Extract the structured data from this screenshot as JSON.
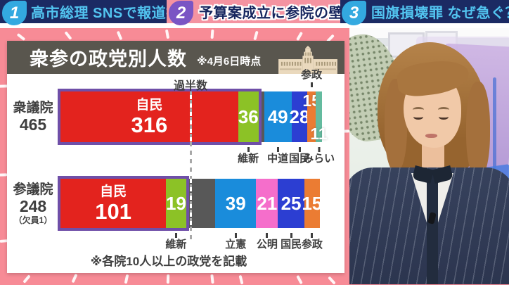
{
  "ticker": {
    "items": [
      {
        "number": "1",
        "label": "高市総理 SNSで報道批判",
        "theme": "navy"
      },
      {
        "number": "2",
        "label": "予算案成立に参院の壁",
        "theme": "pink"
      },
      {
        "number": "3",
        "label": "国旗損壊罪 なぜ急ぐ？",
        "theme": "navy"
      }
    ]
  },
  "colors": {
    "ticker_navy": "#1b2a63",
    "ticker_pink": "#f493a1",
    "ticker_text_blue": "#52c4f0",
    "badge_blue": "#33a9e0",
    "badge_purple": "#7a55c4",
    "stage_pink": "#f78b96",
    "panel_title_bar": "#59564e",
    "coalition_border": "#6f4fa8"
  },
  "chart_data": {
    "type": "bar",
    "title": "衆参の政党別人数",
    "as_of": "※4月6日時点",
    "note": "※各院10人以上の政党を記載",
    "majority": {
      "label": "過半数",
      "fraction": 0.5
    },
    "rows": [
      {
        "house": "衆議院",
        "total": "465",
        "segments": [
          {
            "party": "自民",
            "seats": 316,
            "color": "#e3231e",
            "name_inside": "自民",
            "value_label": "316",
            "coalition": true
          },
          {
            "party": "維新",
            "seats": 36,
            "color": "#8cc226",
            "value_label": "36",
            "coalition": true,
            "callout": "維新",
            "callout_pos": "below"
          },
          {
            "party": "",
            "seats": 10,
            "color": "#585858"
          },
          {
            "party": "中道",
            "seats": 49,
            "color": "#1a8cdb",
            "value_label": "49",
            "callout": "中道",
            "callout_pos": "below"
          },
          {
            "party": "国民",
            "seats": 28,
            "color": "#2c3ed2",
            "value_label": "28",
            "callout": "国民",
            "callout_pos": "below"
          },
          {
            "party": "参政",
            "seats": 15,
            "color": "#eb7c33",
            "value_label": "15",
            "value_pos": "top",
            "callout": "参政",
            "callout_pos": "above"
          },
          {
            "party": "みらい",
            "seats": 11,
            "color": "#64bb9f",
            "value_label": "11",
            "value_pos": "bottom",
            "callout": "みらい",
            "callout_pos": "below"
          }
        ]
      },
      {
        "house": "参議院",
        "total": "248",
        "vacancy": "（欠員1）",
        "segments": [
          {
            "party": "自民",
            "seats": 101,
            "color": "#e3231e",
            "name_inside": "自民",
            "value_label": "101",
            "coalition": true
          },
          {
            "party": "維新",
            "seats": 19,
            "color": "#8cc226",
            "value_label": "19",
            "coalition": true,
            "callout": "維新",
            "callout_pos": "below"
          },
          {
            "party": "",
            "seats": 28,
            "color": "#585858"
          },
          {
            "party": "立憲",
            "seats": 39,
            "color": "#1a8cdb",
            "value_label": "39",
            "callout": "立憲",
            "callout_pos": "below"
          },
          {
            "party": "公明",
            "seats": 21,
            "color": "#f56ecb",
            "value_label": "21",
            "callout": "公明",
            "callout_pos": "below"
          },
          {
            "party": "国民",
            "seats": 25,
            "color": "#2c3ed2",
            "value_label": "25",
            "callout": "国民",
            "callout_pos": "below"
          },
          {
            "party": "参政",
            "seats": 15,
            "color": "#eb7c33",
            "value_label": "15",
            "callout": "参政",
            "callout_pos": "below"
          }
        ]
      }
    ]
  }
}
